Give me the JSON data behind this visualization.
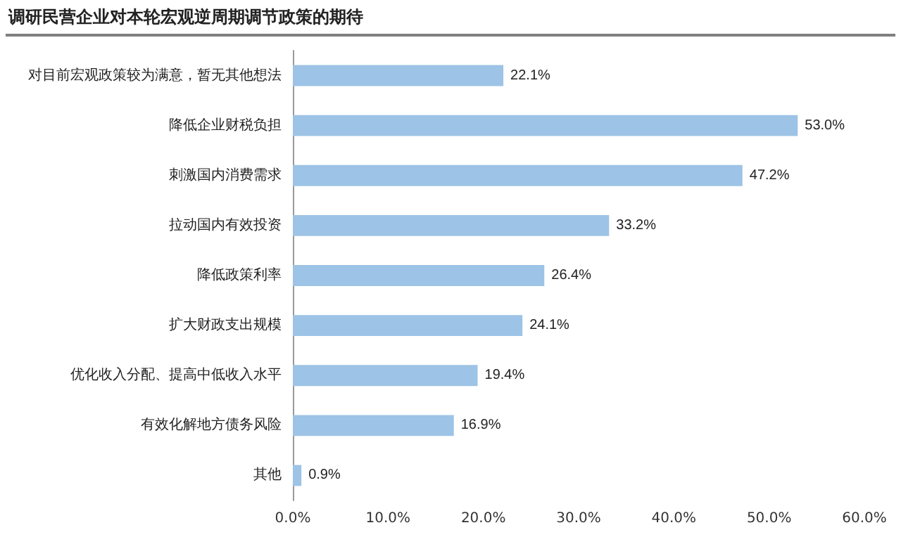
{
  "chart_data": {
    "type": "bar",
    "orientation": "horizontal",
    "title": "调研民营企业对本轮宏观逆周期调节政策的期待",
    "categories": [
      "对目前宏观政策较为满意，暂无其他想法",
      "降低企业财税负担",
      "刺激国内消费需求",
      "拉动国内有效投资",
      "降低政策利率",
      "扩大财政支出规模",
      "优化收入分配、提高中低收入水平",
      "有效化解地方债务风险",
      "其他"
    ],
    "values": [
      22.1,
      53.0,
      47.2,
      33.2,
      26.4,
      24.1,
      19.4,
      16.9,
      0.9
    ],
    "value_labels": [
      "22.1%",
      "53.0%",
      "47.2%",
      "33.2%",
      "26.4%",
      "24.1%",
      "19.4%",
      "16.9%",
      "0.9%"
    ],
    "color": "#9dc3e6",
    "xlim": [
      0,
      60
    ],
    "xticks": [
      {
        "value": 0,
        "label": "0.0%"
      },
      {
        "value": 10,
        "label": "10.0%"
      },
      {
        "value": 20,
        "label": "20.0%"
      },
      {
        "value": 30,
        "label": "30.0%"
      },
      {
        "value": 40,
        "label": "40.0%"
      },
      {
        "value": 50,
        "label": "50.0%"
      },
      {
        "value": 60,
        "label": "60.0%"
      }
    ],
    "grid": false
  }
}
